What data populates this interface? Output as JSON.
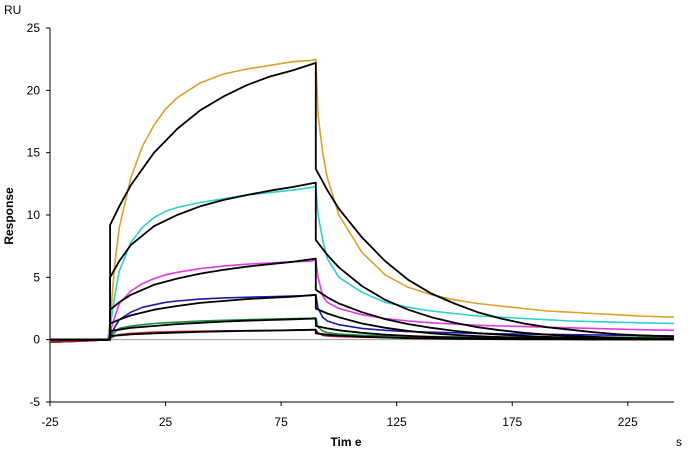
{
  "chart_data": {
    "type": "line",
    "title": "",
    "xlabel": "Tim e",
    "ylabel": "Response",
    "x_unit": "s",
    "y_unit": "RU",
    "xlim": [
      -25,
      245
    ],
    "ylim": [
      -5,
      25
    ],
    "x_ticks": [
      -25,
      25,
      75,
      125,
      175,
      225
    ],
    "y_ticks": [
      -5,
      0,
      5,
      10,
      15,
      20,
      25
    ],
    "x_tick_labels": [
      "-25",
      "25",
      "75",
      "125",
      "175",
      "225"
    ],
    "y_tick_labels": [
      "-5",
      "0",
      "5",
      "10",
      "15",
      "20",
      "25"
    ],
    "grid": false,
    "legend": "none",
    "injection_start": 1,
    "injection_end": 90,
    "series": [
      {
        "color": "#dba02c",
        "kind": "measured",
        "x": [
          -25,
          -10,
          0,
          1,
          3,
          5,
          10,
          15,
          20,
          25,
          30,
          40,
          50,
          60,
          70,
          80,
          88,
          90,
          91,
          93,
          95,
          100,
          110,
          120,
          130,
          140,
          150,
          160,
          170,
          180,
          190,
          200,
          210,
          220,
          230,
          245
        ],
        "y": [
          -0.2,
          -0.1,
          0,
          1.5,
          6,
          9,
          13,
          15.5,
          17.2,
          18.5,
          19.4,
          20.6,
          21.3,
          21.7,
          22,
          22.3,
          22.4,
          22.5,
          18,
          15,
          13,
          10,
          7,
          5.2,
          4.2,
          3.6,
          3.2,
          2.9,
          2.7,
          2.5,
          2.3,
          2.2,
          2.1,
          2,
          1.9,
          1.8
        ]
      },
      {
        "color": "#2ecfcf",
        "kind": "measured",
        "x": [
          -25,
          -10,
          0,
          1,
          3,
          5,
          10,
          15,
          20,
          25,
          30,
          40,
          50,
          60,
          70,
          80,
          88,
          90,
          91,
          93,
          95,
          100,
          110,
          120,
          130,
          140,
          150,
          160,
          170,
          180,
          190,
          200,
          210,
          220,
          230,
          245
        ],
        "y": [
          -0.2,
          -0.1,
          0,
          1,
          3.5,
          5.5,
          7.8,
          9,
          9.8,
          10.3,
          10.6,
          11,
          11.3,
          11.6,
          11.8,
          12,
          12.2,
          12.3,
          10,
          8,
          6.5,
          5,
          3.8,
          3,
          2.6,
          2.3,
          2.1,
          1.9,
          1.8,
          1.7,
          1.6,
          1.5,
          1.45,
          1.4,
          1.35,
          1.3
        ]
      },
      {
        "color": "#e23ae2",
        "kind": "measured",
        "x": [
          -25,
          -10,
          0,
          1,
          3,
          5,
          10,
          15,
          20,
          25,
          30,
          40,
          50,
          60,
          70,
          80,
          88,
          90,
          91,
          93,
          95,
          100,
          110,
          120,
          130,
          140,
          150,
          160,
          170,
          180,
          190,
          200,
          210,
          220,
          230,
          245
        ],
        "y": [
          -0.2,
          -0.1,
          0,
          0.6,
          1.8,
          2.9,
          3.9,
          4.5,
          4.9,
          5.2,
          5.4,
          5.7,
          5.9,
          6.05,
          6.15,
          6.25,
          6.3,
          6.4,
          5,
          3.5,
          3,
          2.5,
          2,
          1.7,
          1.5,
          1.35,
          1.25,
          1.15,
          1.1,
          1.05,
          1,
          0.95,
          0.9,
          0.85,
          0.8,
          0.75
        ]
      },
      {
        "color": "#1a1aa8",
        "kind": "measured",
        "x": [
          -25,
          -10,
          0,
          1,
          3,
          5,
          10,
          15,
          20,
          25,
          30,
          40,
          50,
          60,
          70,
          80,
          88,
          90,
          91,
          93,
          95,
          100,
          110,
          120,
          130,
          140,
          150,
          160,
          170,
          180,
          190,
          200,
          210,
          220,
          230,
          245
        ],
        "y": [
          -0.2,
          -0.1,
          0,
          0.3,
          1,
          1.6,
          2.2,
          2.6,
          2.8,
          3,
          3.1,
          3.25,
          3.35,
          3.4,
          3.45,
          3.5,
          3.55,
          3.6,
          2.5,
          1.8,
          1.5,
          1.2,
          0.9,
          0.75,
          0.65,
          0.6,
          0.55,
          0.5,
          0.47,
          0.45,
          0.43,
          0.4,
          0.38,
          0.36,
          0.34,
          0.3
        ]
      },
      {
        "color": "#1f8c3c",
        "kind": "measured",
        "x": [
          -25,
          -10,
          0,
          1,
          3,
          5,
          10,
          15,
          20,
          25,
          30,
          40,
          50,
          60,
          70,
          80,
          88,
          90,
          91,
          93,
          95,
          100,
          110,
          120,
          130,
          140,
          150,
          160,
          170,
          180,
          190,
          200,
          210,
          220,
          230,
          245
        ],
        "y": [
          -0.2,
          -0.1,
          0,
          0.2,
          0.6,
          0.9,
          1.1,
          1.2,
          1.3,
          1.35,
          1.4,
          1.5,
          1.55,
          1.6,
          1.65,
          1.7,
          1.72,
          1.75,
          1,
          0.7,
          0.55,
          0.45,
          0.35,
          0.3,
          0.27,
          0.25,
          0.23,
          0.22,
          0.21,
          0.2,
          0.2,
          0.2,
          0.2,
          0.2,
          0.2,
          0.2
        ]
      },
      {
        "color": "#c0141b",
        "kind": "measured",
        "x": [
          -25,
          -10,
          0,
          1,
          3,
          5,
          10,
          15,
          20,
          25,
          30,
          40,
          50,
          60,
          70,
          80,
          88,
          90,
          91,
          93,
          95,
          100,
          110,
          120,
          130,
          140,
          150,
          160,
          170,
          180,
          190,
          200,
          210,
          220,
          230,
          245
        ],
        "y": [
          -0.2,
          -0.1,
          0,
          0.1,
          0.3,
          0.4,
          0.5,
          0.55,
          0.6,
          0.62,
          0.65,
          0.68,
          0.7,
          0.72,
          0.74,
          0.76,
          0.78,
          0.8,
          0.55,
          0.35,
          0.3,
          0.25,
          0.2,
          0.17,
          0.15,
          0.14,
          0.13,
          0.12,
          0.11,
          0.1,
          0.1,
          0.1,
          0.1,
          0.1,
          0.1,
          0.1
        ]
      },
      {
        "color": "#000000",
        "kind": "fit",
        "x": [
          -25,
          0,
          1,
          1.01,
          5,
          10,
          20,
          30,
          40,
          50,
          60,
          70,
          80,
          90,
          90.01,
          95,
          100,
          110,
          120,
          130,
          140,
          150,
          160,
          170,
          180,
          190,
          200,
          210,
          220,
          230,
          245
        ],
        "y": [
          0,
          0,
          0,
          9.2,
          10.7,
          12.4,
          15,
          16.9,
          18.4,
          19.5,
          20.4,
          21.1,
          21.6,
          22.2,
          13.7,
          12,
          10.5,
          8.2,
          6.3,
          4.8,
          3.7,
          2.9,
          2.2,
          1.7,
          1.3,
          1,
          0.8,
          0.6,
          0.45,
          0.35,
          0.25
        ]
      },
      {
        "color": "#000000",
        "kind": "fit",
        "x": [
          -25,
          0,
          1,
          1.01,
          5,
          10,
          20,
          30,
          40,
          50,
          60,
          70,
          80,
          90,
          90.01,
          95,
          100,
          110,
          120,
          130,
          140,
          150,
          160,
          170,
          180,
          190,
          200,
          210,
          220,
          230,
          245
        ],
        "y": [
          0,
          0,
          0,
          5,
          6.3,
          7.6,
          9.1,
          10,
          10.7,
          11.2,
          11.6,
          11.95,
          12.25,
          12.6,
          8,
          6.8,
          5.8,
          4.3,
          3.2,
          2.4,
          1.8,
          1.35,
          1,
          0.75,
          0.55,
          0.4,
          0.3,
          0.22,
          0.16,
          0.12,
          0.08
        ]
      },
      {
        "color": "#000000",
        "kind": "fit",
        "x": [
          -25,
          0,
          1,
          1.01,
          5,
          10,
          20,
          30,
          40,
          50,
          60,
          70,
          80,
          90,
          90.01,
          95,
          100,
          110,
          120,
          130,
          140,
          150,
          160,
          170,
          180,
          190,
          200,
          210,
          220,
          230,
          245
        ],
        "y": [
          0,
          0,
          0,
          2.4,
          3,
          3.6,
          4.4,
          4.9,
          5.3,
          5.6,
          5.85,
          6.05,
          6.25,
          6.5,
          4,
          3.4,
          2.9,
          2.2,
          1.65,
          1.25,
          0.95,
          0.7,
          0.52,
          0.4,
          0.3,
          0.22,
          0.16,
          0.12,
          0.09,
          0.07,
          0.05
        ]
      },
      {
        "color": "#000000",
        "kind": "fit",
        "x": [
          -25,
          0,
          1,
          1.01,
          5,
          10,
          20,
          30,
          40,
          50,
          60,
          70,
          80,
          90,
          90.01,
          95,
          100,
          110,
          120,
          130,
          140,
          150,
          160,
          170,
          180,
          190,
          200,
          210,
          220,
          230,
          245
        ],
        "y": [
          0,
          0,
          0,
          1.3,
          1.6,
          1.95,
          2.4,
          2.7,
          2.95,
          3.1,
          3.25,
          3.35,
          3.45,
          3.6,
          2.5,
          2.1,
          1.8,
          1.3,
          0.95,
          0.7,
          0.5,
          0.38,
          0.28,
          0.2,
          0.15,
          0.11,
          0.08,
          0.06,
          0.05,
          0.04,
          0.03
        ]
      },
      {
        "color": "#000000",
        "kind": "fit",
        "x": [
          -25,
          0,
          1,
          1.01,
          5,
          10,
          20,
          30,
          40,
          50,
          60,
          70,
          80,
          90,
          90.01,
          95,
          100,
          110,
          120,
          130,
          140,
          150,
          160,
          170,
          180,
          190,
          200,
          210,
          220,
          230,
          245
        ],
        "y": [
          0,
          0,
          0,
          0.7,
          0.8,
          0.95,
          1.1,
          1.25,
          1.35,
          1.45,
          1.52,
          1.58,
          1.63,
          1.7,
          1.1,
          0.9,
          0.75,
          0.55,
          0.4,
          0.3,
          0.22,
          0.16,
          0.12,
          0.09,
          0.07,
          0.05,
          0.04,
          0.03,
          0.02,
          0.02,
          0.01
        ]
      },
      {
        "color": "#000000",
        "kind": "fit",
        "x": [
          -25,
          0,
          1,
          1.01,
          5,
          10,
          20,
          30,
          40,
          50,
          60,
          70,
          80,
          90,
          90.01,
          95,
          100,
          110,
          120,
          130,
          140,
          150,
          160,
          170,
          180,
          190,
          200,
          210,
          220,
          230,
          245
        ],
        "y": [
          0,
          0,
          0,
          0.3,
          0.35,
          0.42,
          0.5,
          0.57,
          0.62,
          0.67,
          0.7,
          0.73,
          0.76,
          0.8,
          0.5,
          0.4,
          0.33,
          0.24,
          0.17,
          0.12,
          0.09,
          0.07,
          0.05,
          0.04,
          0.03,
          0.02,
          0.02,
          0.01,
          0.01,
          0.01,
          0.01
        ]
      }
    ]
  }
}
